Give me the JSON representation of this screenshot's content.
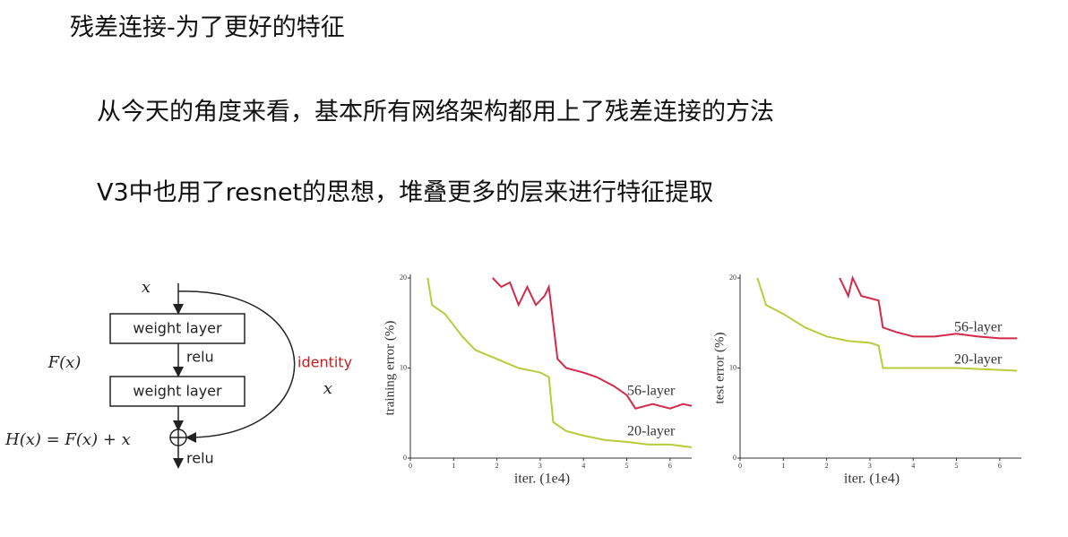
{
  "title": "残差连接-为了更好的特征",
  "bullets": [
    "从今天的角度来看，基本所有网络架构都用上了残差连接的方法",
    "V3中也用了resnet的思想，堆叠更多的层来进行特征提取"
  ],
  "diagram": {
    "input": "x",
    "layer1": "weight layer",
    "relu1": "relu",
    "fx": "F(x)",
    "layer2": "weight layer",
    "identity": "identity",
    "identity_x": "x",
    "output": "H(x) = F(x) + x",
    "relu2": "relu"
  },
  "chart_data": [
    {
      "type": "line",
      "ylabel": "training error (%)",
      "xlabel": "iter. (1e4)",
      "xlim": [
        0,
        6.5
      ],
      "xticks": [
        0,
        1,
        2,
        3,
        4,
        5,
        6
      ],
      "ylim": [
        0,
        20
      ],
      "yticks": [
        0,
        10,
        20
      ],
      "series": [
        {
          "name": "56-layer",
          "color": "#d42a4a",
          "x": [
            1.9,
            2.1,
            2.3,
            2.5,
            2.7,
            2.9,
            3.1,
            3.2,
            3.4,
            3.6,
            4,
            4.3,
            4.7,
            5,
            5.2,
            5.6,
            6,
            6.3,
            6.5
          ],
          "values": [
            20,
            19,
            19.5,
            17,
            19,
            17,
            18,
            19,
            11,
            10,
            9.5,
            9,
            8,
            7,
            5.5,
            6,
            5.5,
            6,
            5.8
          ]
        },
        {
          "name": "20-layer",
          "color": "#b8cc3a",
          "x": [
            0.4,
            0.5,
            0.8,
            1.2,
            1.5,
            2,
            2.5,
            3,
            3.2,
            3.3,
            3.6,
            4,
            4.5,
            5,
            5.5,
            6,
            6.5
          ],
          "values": [
            20,
            17,
            16,
            13.5,
            12,
            11,
            10,
            9.5,
            9,
            4,
            3,
            2.5,
            2,
            1.8,
            1.5,
            1.5,
            1.2
          ]
        }
      ]
    },
    {
      "type": "line",
      "ylabel": "test error (%)",
      "xlabel": "iter. (1e4)",
      "xlim": [
        0,
        6.5
      ],
      "xticks": [
        0,
        1,
        2,
        3,
        4,
        5,
        6
      ],
      "ylim": [
        0,
        20
      ],
      "yticks": [
        0,
        10,
        20
      ],
      "series": [
        {
          "name": "56-layer",
          "color": "#d42a4a",
          "x": [
            2.3,
            2.5,
            2.6,
            2.8,
            3.2,
            3.3,
            3.6,
            4,
            4.5,
            5,
            5.5,
            6,
            6.4
          ],
          "values": [
            20,
            18,
            20,
            18,
            17.5,
            14.5,
            14,
            13.5,
            13.5,
            13.8,
            13.5,
            13.3,
            13.3
          ]
        },
        {
          "name": "20-layer",
          "color": "#b8cc3a",
          "x": [
            0.4,
            0.6,
            1,
            1.5,
            2,
            2.5,
            3,
            3.2,
            3.3,
            4,
            5,
            6.4
          ],
          "values": [
            20,
            17,
            16,
            14.5,
            13.5,
            13,
            12.8,
            12.5,
            10,
            10,
            10,
            9.7
          ]
        }
      ]
    }
  ]
}
